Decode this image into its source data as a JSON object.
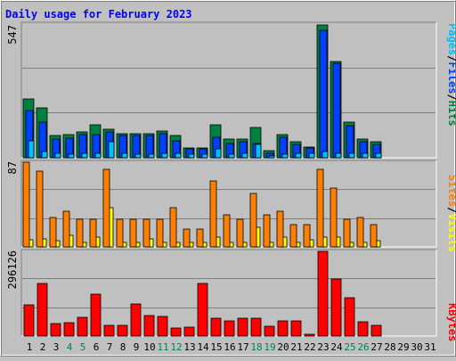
{
  "chart_data": [
    {
      "type": "bar",
      "title": "Daily usage for February 2023",
      "max_label": "547",
      "legend": [
        "Pages",
        "Files",
        "Hits"
      ],
      "days": [
        "1",
        "2",
        "3",
        "4",
        "5",
        "6",
        "7",
        "8",
        "9",
        "10",
        "11",
        "12",
        "13",
        "14",
        "15",
        "16",
        "17",
        "18",
        "19",
        "20",
        "21",
        "22",
        "23",
        "24",
        "25",
        "26",
        "27",
        "28",
        "29",
        "30",
        "31"
      ],
      "weekend_days": [
        "4",
        "5",
        "11",
        "12",
        "18",
        "19",
        "25",
        "26"
      ],
      "ylim": [
        0,
        547
      ],
      "series": [
        {
          "name": "Hits",
          "color": "#008040",
          "values": [
            240,
            205,
            90,
            95,
            105,
            135,
            115,
            100,
            100,
            100,
            110,
            90,
            40,
            40,
            135,
            75,
            75,
            125,
            30,
            95,
            65,
            45,
            545,
            395,
            145,
            75,
            65,
            0,
            0,
            0,
            0
          ]
        },
        {
          "name": "Files",
          "color": "#0040ff",
          "values": [
            195,
            145,
            75,
            80,
            95,
            95,
            105,
            90,
            90,
            90,
            100,
            70,
            35,
            35,
            85,
            60,
            65,
            60,
            20,
            85,
            55,
            40,
            520,
            385,
            130,
            65,
            55,
            0,
            0,
            0,
            0
          ]
        },
        {
          "name": "Pages",
          "color": "#00c0ff",
          "values": [
            70,
            25,
            20,
            15,
            20,
            20,
            65,
            20,
            15,
            15,
            20,
            20,
            15,
            15,
            35,
            15,
            20,
            55,
            8,
            15,
            20,
            20,
            25,
            20,
            20,
            20,
            20,
            0,
            0,
            0,
            0
          ]
        }
      ]
    },
    {
      "type": "bar",
      "max_label": "87",
      "legend": [
        "Sites",
        "Visits"
      ],
      "ylim": [
        0,
        87
      ],
      "series": [
        {
          "name": "Visits",
          "color": "#ffff00",
          "values": [
            7,
            8,
            6,
            12,
            5,
            10,
            40,
            5,
            5,
            8,
            5,
            5,
            5,
            5,
            10,
            5,
            5,
            20,
            5,
            10,
            5,
            7,
            10,
            10,
            5,
            5,
            6,
            0,
            0,
            0,
            0
          ]
        },
        {
          "name": "Sites",
          "color": "#ff8000",
          "values": [
            87,
            78,
            30,
            37,
            28,
            28,
            80,
            28,
            28,
            28,
            28,
            40,
            18,
            18,
            68,
            33,
            28,
            55,
            33,
            37,
            23,
            23,
            80,
            60,
            28,
            30,
            23,
            0,
            0,
            0,
            0
          ]
        }
      ]
    },
    {
      "type": "bar",
      "max_label": "296126",
      "legend": [
        "KBytes"
      ],
      "ylim": [
        0,
        296126
      ],
      "series": [
        {
          "name": "KBytes",
          "color": "#ff0000",
          "values": [
            110000,
            185000,
            43000,
            47000,
            65000,
            145000,
            38000,
            37000,
            113000,
            72000,
            68000,
            29000,
            30000,
            185000,
            62000,
            52000,
            62000,
            63000,
            34000,
            52000,
            54000,
            5000,
            296000,
            200000,
            134000,
            51000,
            36000,
            0,
            0,
            0,
            0
          ]
        }
      ]
    }
  ]
}
